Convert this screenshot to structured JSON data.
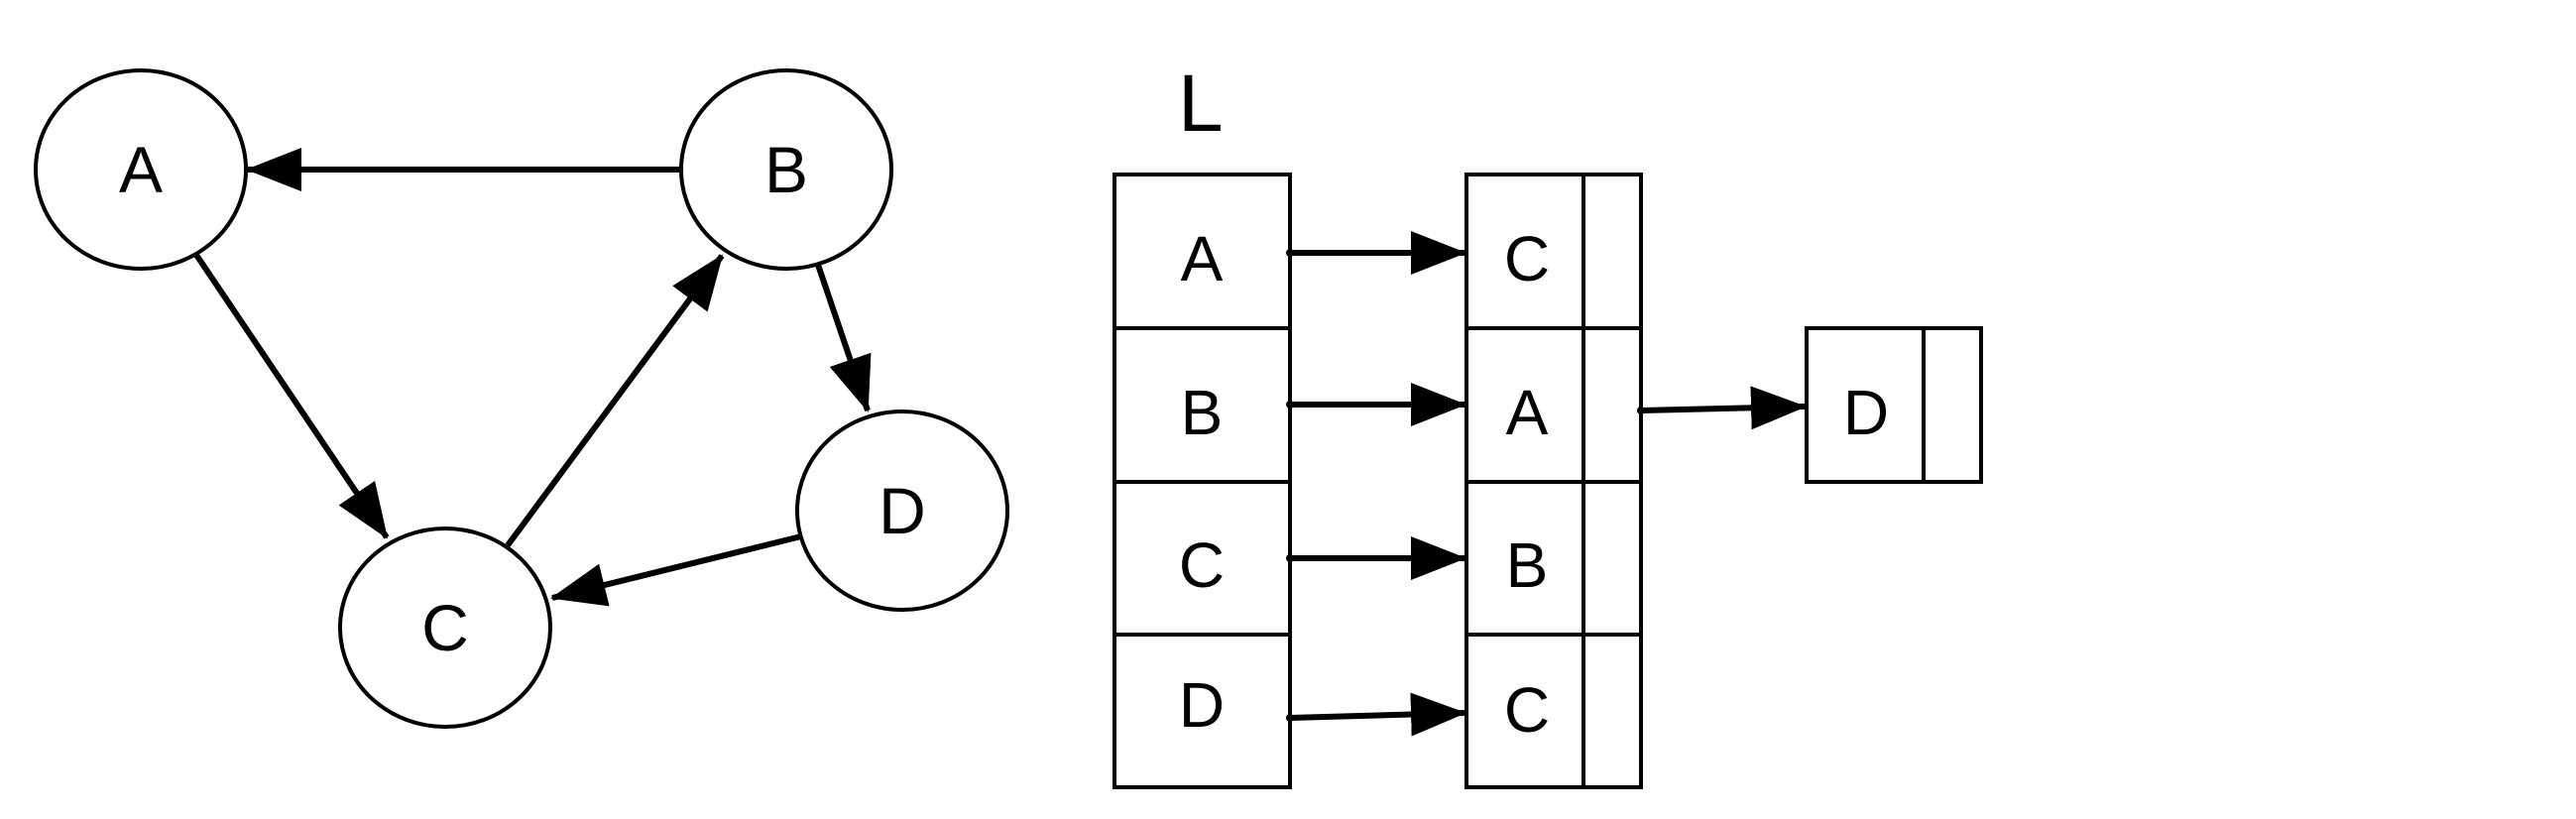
{
  "graph": {
    "nodes": [
      {
        "id": "A",
        "label": "A"
      },
      {
        "id": "B",
        "label": "B"
      },
      {
        "id": "C",
        "label": "C"
      },
      {
        "id": "D",
        "label": "D"
      }
    ],
    "edges": [
      {
        "from": "B",
        "to": "A"
      },
      {
        "from": "A",
        "to": "C"
      },
      {
        "from": "C",
        "to": "B"
      },
      {
        "from": "B",
        "to": "D"
      },
      {
        "from": "D",
        "to": "C"
      }
    ]
  },
  "adjacency_list": {
    "title": "L",
    "heads": [
      "A",
      "B",
      "C",
      "D"
    ],
    "list_nodes": [
      {
        "owner": "A",
        "value": "C"
      },
      {
        "owner": "B",
        "value": "A"
      },
      {
        "owner": "C",
        "value": "B"
      },
      {
        "owner": "D",
        "value": "C"
      },
      {
        "owner": "B",
        "value": "D"
      }
    ]
  },
  "style": {
    "stroke": "#000000",
    "background": "#ffffff"
  }
}
